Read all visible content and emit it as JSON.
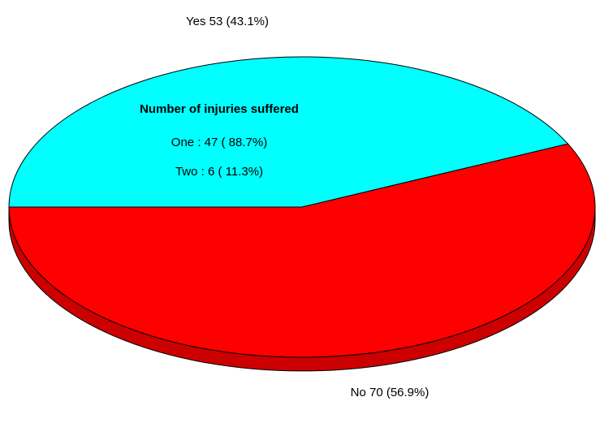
{
  "chart_data": {
    "type": "pie",
    "values": [
      53,
      70
    ],
    "value_labels": [
      "Yes 53 (43.1%)",
      "No 70 (56.9%)"
    ],
    "colors": [
      "#00ffff",
      "#ff0000"
    ],
    "annotation": {
      "title": "Number of injuries suffered",
      "lines": [
        "One : 47 ( 88.7%)",
        "Two : 6 ( 11.3%)"
      ]
    }
  }
}
